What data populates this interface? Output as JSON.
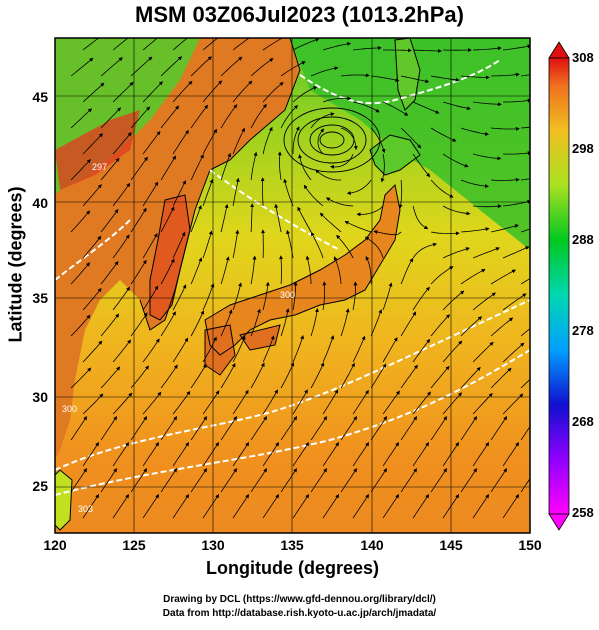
{
  "title": "MSM 03Z06Jul2023 (1013.2hPa)",
  "axes": {
    "xlabel": "Longitude (degrees)",
    "ylabel": "Latitude  (degrees)",
    "x_ticks": [
      "120",
      "125",
      "130",
      "135",
      "140",
      "145",
      "150"
    ],
    "y_ticks": [
      "25",
      "30",
      "35",
      "40",
      "45"
    ],
    "x_range": [
      120,
      150
    ],
    "y_range": [
      22.4,
      47.6
    ]
  },
  "colorbar": {
    "ticks": [
      "308",
      "298",
      "288",
      "278",
      "268",
      "258"
    ],
    "range": [
      258,
      308
    ],
    "unit_hint": "K"
  },
  "footer": {
    "line1": "Drawing by DCL (https://www.gfd-dennou.org/library/dcl/)",
    "line2": "Data from http://database.rish.kyoto-u.ac.jp/arch/jmadata/"
  },
  "contour_labels": [
    "297",
    "300",
    "300",
    "303"
  ],
  "colors": {
    "cold_low": "#ff00ff",
    "mid": "#00c000",
    "warm_high": "#e02020",
    "streamline": "#000000",
    "contour": "#ffffff"
  }
}
